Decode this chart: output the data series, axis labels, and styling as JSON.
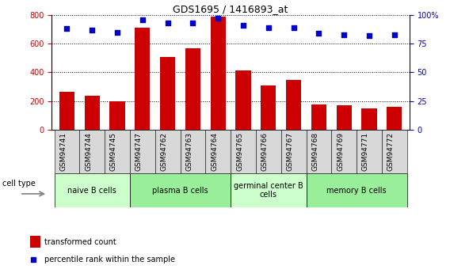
{
  "title": "GDS1695 / 1416893_at",
  "samples": [
    "GSM94741",
    "GSM94744",
    "GSM94745",
    "GSM94747",
    "GSM94762",
    "GSM94763",
    "GSM94764",
    "GSM94765",
    "GSM94766",
    "GSM94767",
    "GSM94768",
    "GSM94769",
    "GSM94771",
    "GSM94772"
  ],
  "transformed_count": [
    265,
    235,
    200,
    710,
    510,
    570,
    790,
    415,
    310,
    345,
    175,
    170,
    150,
    160
  ],
  "percentile_rank": [
    88,
    87,
    85,
    96,
    93,
    93,
    97,
    91,
    89,
    89,
    84,
    83,
    82,
    83
  ],
  "bar_color": "#cc0000",
  "dot_color": "#0000cc",
  "ylim_left": [
    0,
    800
  ],
  "ylim_right": [
    0,
    100
  ],
  "yticks_left": [
    0,
    200,
    400,
    600,
    800
  ],
  "yticks_right": [
    0,
    25,
    50,
    75,
    100
  ],
  "yticklabels_right": [
    "0",
    "25",
    "50",
    "75",
    "100%"
  ],
  "cell_groups": [
    {
      "label": "naive B cells",
      "start": 0,
      "end": 2,
      "color": "#ccffcc"
    },
    {
      "label": "plasma B cells",
      "start": 3,
      "end": 6,
      "color": "#99ee99"
    },
    {
      "label": "germinal center B\ncells",
      "start": 7,
      "end": 9,
      "color": "#ccffcc"
    },
    {
      "label": "memory B cells",
      "start": 10,
      "end": 13,
      "color": "#99ee99"
    }
  ],
  "cell_type_label": "cell type",
  "legend_bar_label": "transformed count",
  "legend_dot_label": "percentile rank within the sample",
  "xtick_bg_color": "#d8d8d8"
}
